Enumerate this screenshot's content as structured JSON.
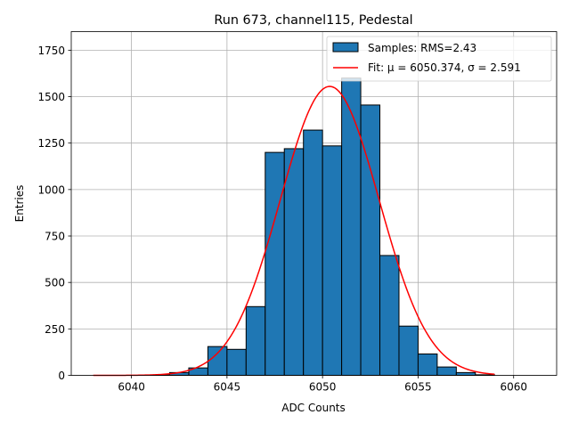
{
  "chart_data": {
    "type": "bar",
    "title": "Run 673, channel115, Pedestal",
    "xlabel": "ADC Counts",
    "ylabel": "Entries",
    "xlim": [
      6036.85,
      6062.25
    ],
    "ylim": [
      0,
      1850
    ],
    "grid": true,
    "legend_placement": "top-right",
    "x_ticks": [
      6040,
      6045,
      6050,
      6055,
      6060
    ],
    "y_ticks": [
      0,
      250,
      500,
      750,
      1000,
      1250,
      1500,
      1750
    ],
    "histogram": {
      "name": "Samples: RMS=2.43",
      "color": "#1f77b4",
      "edge_color": "#000000",
      "bin_edges": [
        6041,
        6042,
        6043,
        6044,
        6045,
        6046,
        6047,
        6048,
        6049,
        6050,
        6051,
        6052,
        6053,
        6054,
        6055,
        6056,
        6057,
        6058,
        6059
      ],
      "counts": [
        2,
        15,
        40,
        155,
        140,
        370,
        1200,
        1220,
        1320,
        1235,
        1600,
        1455,
        645,
        265,
        115,
        45,
        15,
        3
      ]
    },
    "fit": {
      "name": "Fit: μ = 6050.374, σ = 2.591",
      "color": "#ff0000",
      "mu": 6050.374,
      "sigma": 2.591,
      "amplitude": 1555,
      "x_range": [
        6038,
        6059
      ]
    }
  }
}
